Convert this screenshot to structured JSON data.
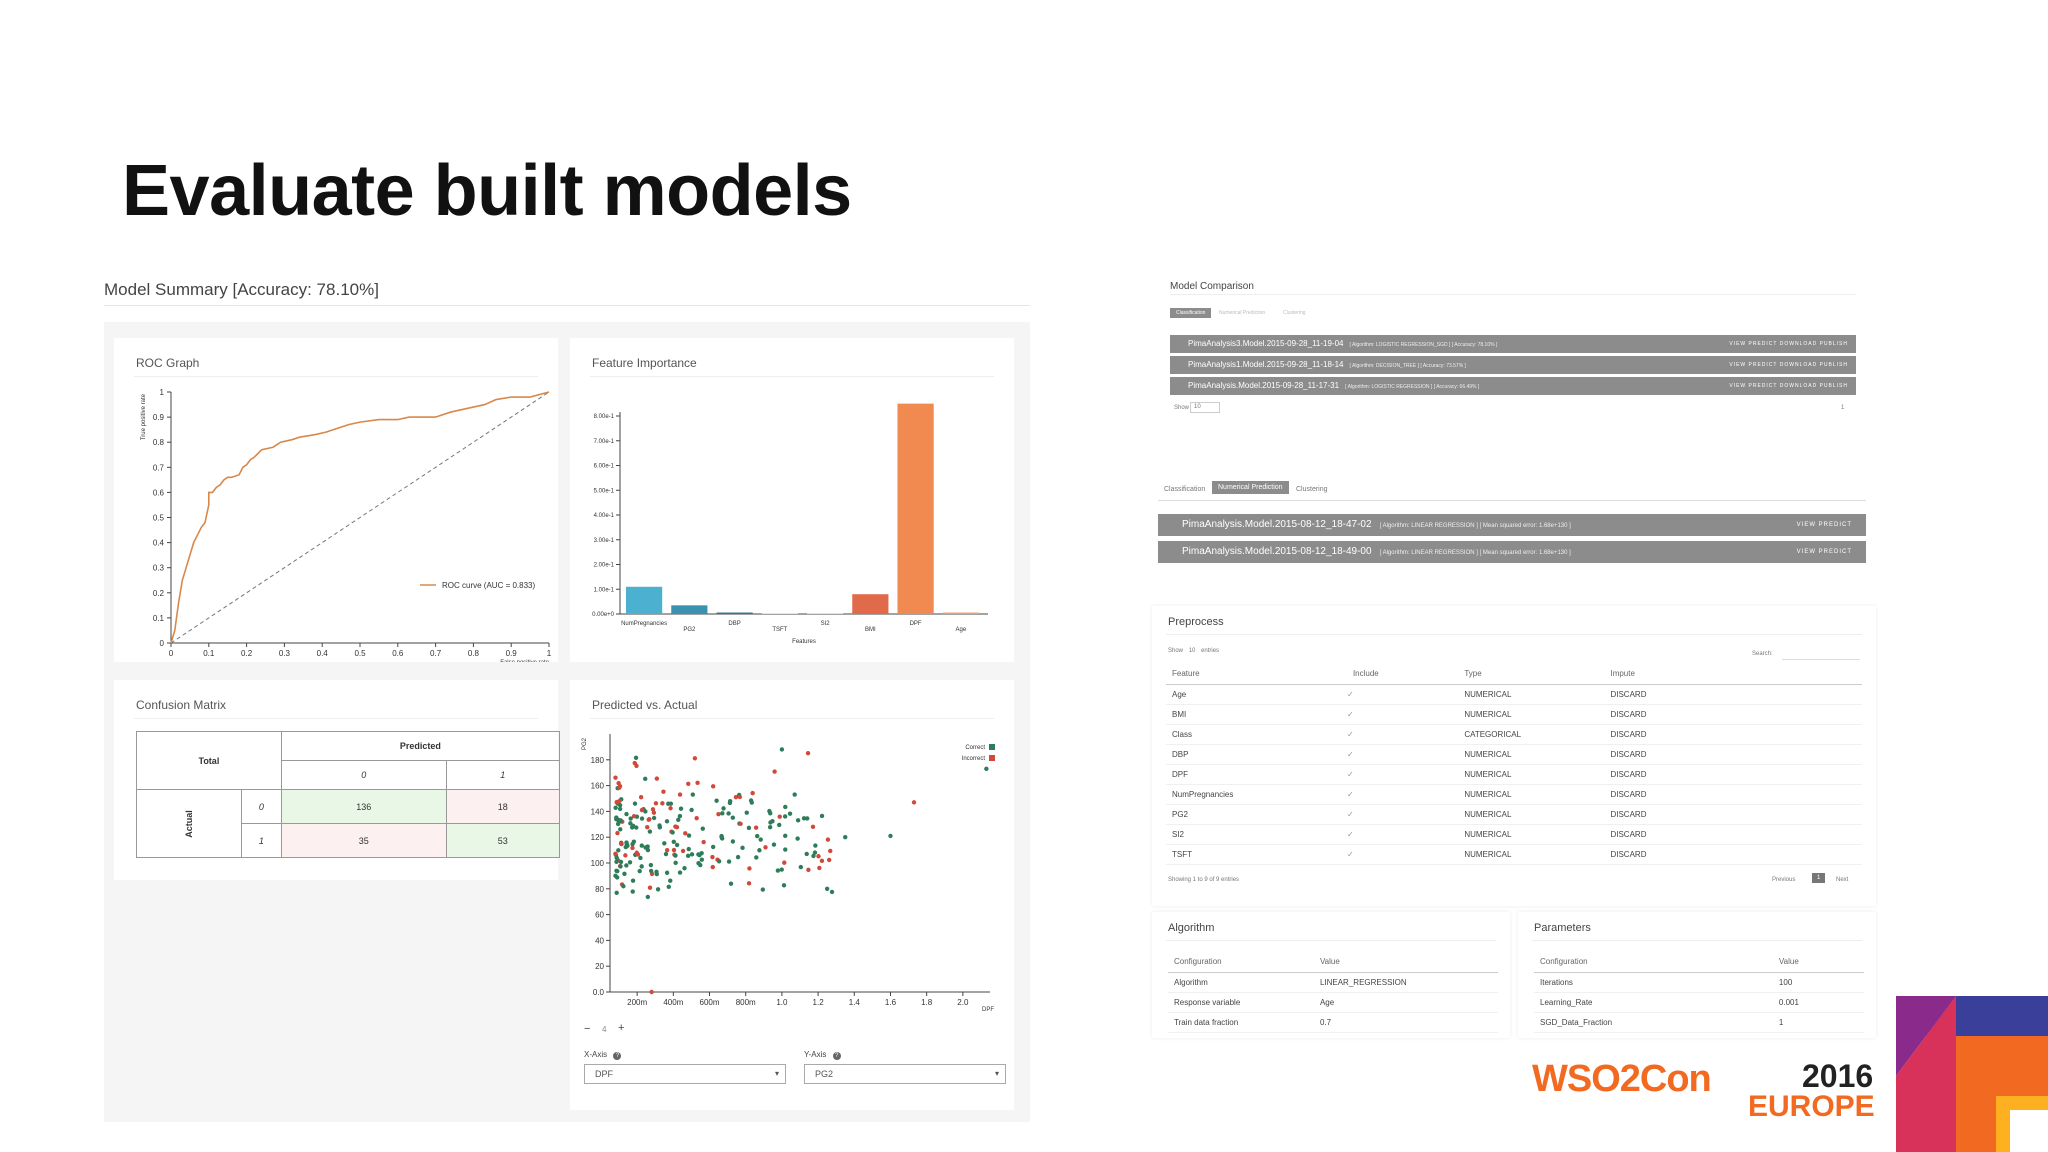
{
  "slide": {
    "title": "Evaluate built models"
  },
  "model_summary": {
    "title": "Model Summary [Accuracy: 78.10%]"
  },
  "roc": {
    "title": "ROC Graph",
    "ylabel": "True positive rate",
    "xlabel": "False positive rate",
    "legend": "ROC curve (AUC = 0.833)",
    "x_ticks": [
      "0",
      "0.1",
      "0.2",
      "0.3",
      "0.4",
      "0.5",
      "0.6",
      "0.7",
      "0.8",
      "0.9",
      "1"
    ],
    "y_ticks": [
      "0",
      "0.1",
      "0.2",
      "0.3",
      "0.4",
      "0.5",
      "0.6",
      "0.7",
      "0.8",
      "0.9",
      "1"
    ],
    "curve_color": "#d9884a"
  },
  "feature_importance": {
    "title": "Feature Importance",
    "xlabel": "Features",
    "y_ticks": [
      "0.00e+0",
      "1.00e-1",
      "2.00e-1",
      "3.00e-1",
      "4.00e-1",
      "5.00e-1",
      "6.00e-1",
      "7.00e-1",
      "8.00e-1"
    ],
    "categories": [
      "NumPregnancies",
      "PG2",
      "DBP",
      "TSFT",
      "SI2",
      "BMI",
      "DPF",
      "Age"
    ],
    "values": [
      0.11,
      0.035,
      0.006,
      0.002,
      0.002,
      0.08,
      0.85,
      0.006
    ],
    "colors": [
      "#4cb0d0",
      "#3a92b0",
      "#2b7a95",
      "#d0d0d0",
      "#e8c0b0",
      "#e06a4a",
      "#f08a50",
      "#f0a070"
    ]
  },
  "confusion_matrix": {
    "title": "Confusion Matrix",
    "total_label": "Total",
    "predicted_label": "Predicted",
    "actual_label": "Actual",
    "col_labels": [
      "0",
      "1"
    ],
    "row_labels": [
      "0",
      "1"
    ],
    "values": [
      [
        "136",
        "18"
      ],
      [
        "35",
        "53"
      ]
    ]
  },
  "predicted_actual": {
    "title": "Predicted vs. Actual",
    "ylabel": "PG2",
    "xlabel": "DPF",
    "legend_correct": "Correct",
    "legend_incorrect": "Incorrect",
    "color_correct": "#2e7d5a",
    "color_incorrect": "#d0493a",
    "x_ticks": [
      "200m",
      "400m",
      "600m",
      "800m",
      "1.0",
      "1.2",
      "1.4",
      "1.6",
      "1.8",
      "2.0"
    ],
    "y_ticks": [
      "0.0",
      "20",
      "40",
      "60",
      "80",
      "100",
      "120",
      "140",
      "160",
      "180"
    ],
    "zoom_minus": "−",
    "zoom_value": "4",
    "zoom_plus": "+",
    "x_axis_label": "X-Axis",
    "y_axis_label": "Y-Axis",
    "x_axis_value": "DPF",
    "y_axis_value": "PG2"
  },
  "model_comparison": {
    "title": "Model Comparison",
    "tabs": [
      "Classification",
      "Numerical Prediction",
      "Clustering"
    ],
    "rows": [
      {
        "name": "PimaAnalysis3.Model.2015-09-28_11-19-04",
        "meta": "[ Algorithm: LOGISTIC REGRESSION_SGD ]   [ Accuracy: 78.10% ]"
      },
      {
        "name": "PimaAnalysis1.Model.2015-09-28_11-18-14",
        "meta": "[ Algorithm: DECISION_TREE ]   [ Accuracy: 73.57% ]"
      },
      {
        "name": "PimaAnalysis.Model.2015-09-28_11-17-31",
        "meta": "[ Algorithm: LOGISTIC REGRESSION ]   [ Accuracy: 66.49% ]"
      }
    ],
    "row_actions": "VIEW   PREDICT   DOWNLOAD   PUBLISH",
    "show_label": "Show",
    "show_value": "10",
    "page": "1"
  },
  "numerical_prediction": {
    "tabs": [
      "Classification",
      "Numerical Prediction",
      "Clustering"
    ],
    "rows": [
      {
        "name": "PimaAnalysis.Model.2015-08-12_18-47-02",
        "meta": "[ Algorithm: LINEAR REGRESSION ]   [ Mean squared error: 1.68e+130 ]"
      },
      {
        "name": "PimaAnalysis.Model.2015-08-12_18-49-00",
        "meta": "[ Algorithm: LINEAR REGRESSION ]   [ Mean squared error: 1.68e+130 ]"
      }
    ],
    "row_actions": "VIEW   PREDICT"
  },
  "preprocess": {
    "title": "Preprocess",
    "show_label": "Show",
    "show_value": "10",
    "entries_label": "entries",
    "search_label": "Search:",
    "headers": [
      "Feature",
      "Include",
      "Type",
      "Impute"
    ],
    "rows": [
      [
        "Age",
        "✓",
        "NUMERICAL",
        "DISCARD"
      ],
      [
        "BMI",
        "✓",
        "NUMERICAL",
        "DISCARD"
      ],
      [
        "Class",
        "✓",
        "CATEGORICAL",
        "DISCARD"
      ],
      [
        "DBP",
        "✓",
        "NUMERICAL",
        "DISCARD"
      ],
      [
        "DPF",
        "✓",
        "NUMERICAL",
        "DISCARD"
      ],
      [
        "NumPregnancies",
        "✓",
        "NUMERICAL",
        "DISCARD"
      ],
      [
        "PG2",
        "✓",
        "NUMERICAL",
        "DISCARD"
      ],
      [
        "SI2",
        "✓",
        "NUMERICAL",
        "DISCARD"
      ],
      [
        "TSFT",
        "✓",
        "NUMERICAL",
        "DISCARD"
      ]
    ],
    "footer": "Showing 1 to 9 of 9 entries",
    "prev": "Previous",
    "page": "1",
    "next": "Next"
  },
  "algorithm": {
    "title": "Algorithm",
    "headers": [
      "Configuration",
      "Value"
    ],
    "rows": [
      [
        "Algorithm",
        "LINEAR_REGRESSION"
      ],
      [
        "Response variable",
        "Age"
      ],
      [
        "Train data fraction",
        "0.7"
      ]
    ]
  },
  "parameters": {
    "title": "Parameters",
    "headers": [
      "Configuration",
      "Value"
    ],
    "rows": [
      [
        "Iterations",
        "100"
      ],
      [
        "Learning_Rate",
        "0.001"
      ],
      [
        "SGD_Data_Fraction",
        "1"
      ]
    ]
  },
  "branding": {
    "wso2con": "WSO2Con",
    "year": "2016",
    "europe": "EUROPE",
    "orange": "#f26a21"
  }
}
